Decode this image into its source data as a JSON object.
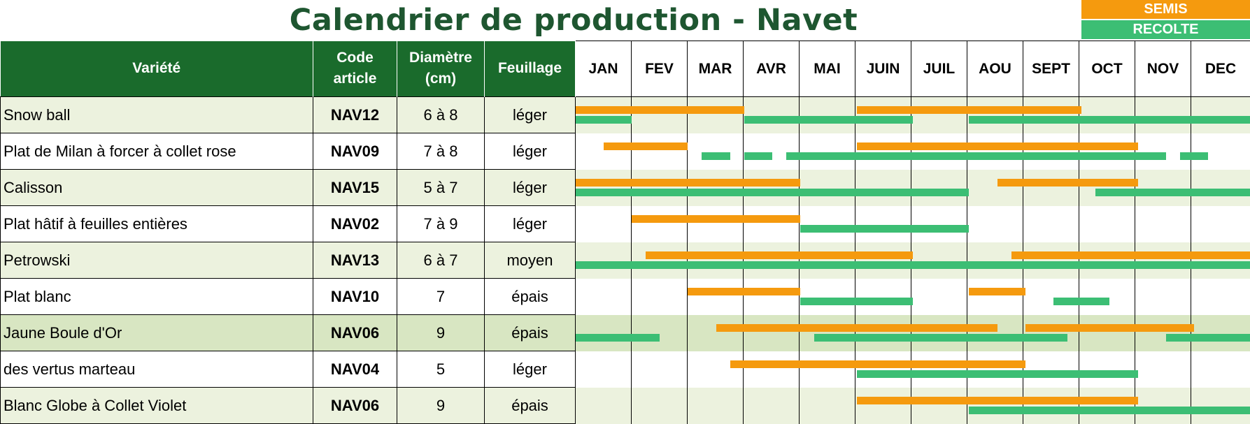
{
  "title": "Calendrier de production - Navet",
  "legend": {
    "semis": "SEMIS",
    "recolte": "RECOLTE"
  },
  "colors": {
    "semis": "#f59a0e",
    "recolte": "#3cbe74",
    "header": "#1a6b2c",
    "title": "#1e5630"
  },
  "headers": {
    "variety": "Variété",
    "code": [
      "Code",
      "article"
    ],
    "diameter": [
      "Diamètre",
      "(cm)"
    ],
    "foliage": "Feuillage",
    "months": [
      "JAN",
      "FEV",
      "MAR",
      "AVR",
      "MAI",
      "JUIN",
      "JUIL",
      "AOU",
      "SEPT",
      "OCT",
      "NOV",
      "DEC"
    ]
  },
  "rows": [
    {
      "variety": "Snow ball",
      "code": "NAV12",
      "diameter": "6 à 8",
      "foliage": "léger",
      "semis": [
        [
          0,
          3
        ],
        [
          5,
          9
        ]
      ],
      "recolte": [
        [
          0,
          1
        ],
        [
          3,
          6
        ],
        [
          7,
          12
        ]
      ]
    },
    {
      "variety": "Plat de Milan à forcer à collet rose",
      "code": "NAV09",
      "diameter": "7 à 8",
      "foliage": "léger",
      "semis": [
        [
          0.5,
          2
        ],
        [
          5,
          10
        ]
      ],
      "recolte": [
        [
          2.25,
          2.75
        ],
        [
          3,
          3.5
        ],
        [
          3.75,
          10.5
        ],
        [
          10.75,
          11.25
        ]
      ]
    },
    {
      "variety": "Calisson",
      "code": "NAV15",
      "diameter": "5 à 7",
      "foliage": "léger",
      "semis": [
        [
          0,
          4
        ],
        [
          7.5,
          10
        ]
      ],
      "recolte": [
        [
          0,
          7
        ],
        [
          9.25,
          12
        ]
      ]
    },
    {
      "variety": "Plat hâtif à feuilles entières",
      "code": "NAV02",
      "diameter": "7 à 9",
      "foliage": "léger",
      "semis": [
        [
          1,
          4
        ]
      ],
      "recolte": [
        [
          4,
          7
        ]
      ]
    },
    {
      "variety": "Petrowski",
      "code": "NAV13",
      "diameter": "6 à 7",
      "foliage": "moyen",
      "semis": [
        [
          1.25,
          6
        ],
        [
          7.75,
          12
        ]
      ],
      "recolte": [
        [
          0,
          12
        ]
      ]
    },
    {
      "variety": "Plat blanc",
      "code": "NAV10",
      "diameter": "7",
      "foliage": "épais",
      "semis": [
        [
          2,
          4
        ],
        [
          7,
          8
        ]
      ],
      "recolte": [
        [
          4,
          6
        ],
        [
          8.5,
          9.5
        ]
      ]
    },
    {
      "variety": "Jaune Boule d'Or",
      "code": "NAV06",
      "diameter": "9",
      "foliage": "épais",
      "semis": [
        [
          2.5,
          7.5
        ],
        [
          8,
          11
        ]
      ],
      "recolte": [
        [
          0,
          1.5
        ],
        [
          4.25,
          8.75
        ],
        [
          10.5,
          12
        ]
      ]
    },
    {
      "variety": "des vertus marteau",
      "code": "NAV04",
      "diameter": "5",
      "foliage": "léger",
      "semis": [
        [
          2.75,
          8
        ]
      ],
      "recolte": [
        [
          5,
          10
        ]
      ]
    },
    {
      "variety": "Blanc Globe à Collet Violet",
      "code": "NAV06",
      "diameter": "9",
      "foliage": "épais",
      "semis": [
        [
          5,
          10
        ]
      ],
      "recolte": [
        [
          7,
          12
        ]
      ]
    }
  ]
}
